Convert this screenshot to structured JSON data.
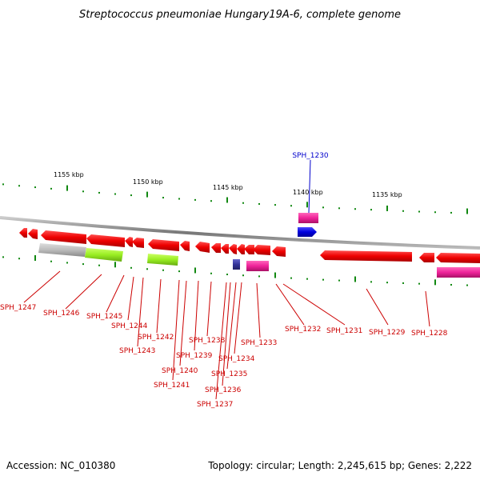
{
  "title": "Streptococcus pneumoniae Hungary19A-6, complete genome",
  "footer": {
    "accession": "Accession: NC_010380",
    "topology": "Topology: circular; Length: 2,245,615 bp; Genes: 2,222"
  },
  "axis_ticks": [
    "1155 kbp",
    "1150 kbp",
    "1145 kbp",
    "1140 kbp",
    "1135 kbp"
  ],
  "highlight_gene": "SPH_1230",
  "gene_labels": [
    "SPH_1247",
    "SPH_1246",
    "SPH_1245",
    "SPH_1244",
    "SPH_1243",
    "SPH_1242",
    "SPH_1241",
    "SPH_1240",
    "SPH_1239",
    "SPH_1238",
    "SPH_1237",
    "SPH_1236",
    "SPH_1235",
    "SPH_1234",
    "SPH_1233",
    "SPH_1232",
    "SPH_1231",
    "SPH_1229",
    "SPH_1228"
  ],
  "colors": {
    "gene_red": "#ee0000",
    "highlight_blue": "#0000dd",
    "pink": "#ee2299",
    "lime": "#99ee22",
    "grey": "#bbbbbb",
    "navy": "#333399",
    "tick_green": "#118811",
    "backbone": "#888888"
  }
}
